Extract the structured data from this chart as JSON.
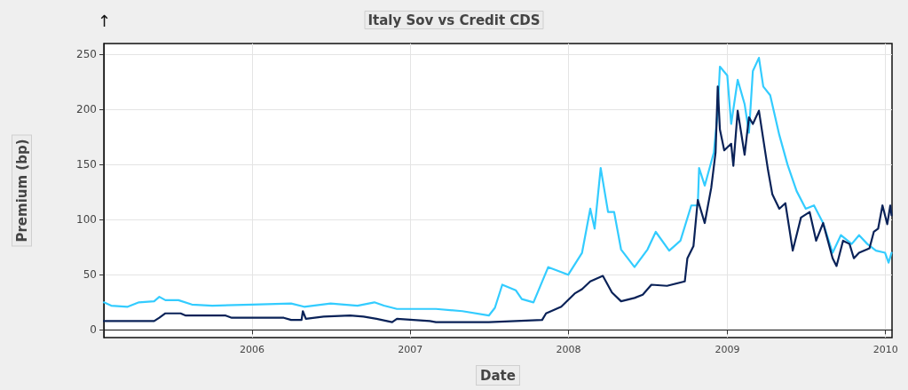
{
  "chart_data": {
    "type": "line",
    "title": "Italy Sov vs Credit CDS",
    "xlabel": "Date",
    "ylabel": "Premium (bp)",
    "annotations": [
      "↑"
    ],
    "xlim": [
      "2005-01-24",
      "2010-01-16"
    ],
    "xticks": [
      "2006",
      "2007",
      "2008",
      "2009",
      "2010"
    ],
    "ylim": [
      -7,
      260
    ],
    "yticks": [
      0,
      50,
      100,
      150,
      200,
      250
    ],
    "grid": true,
    "marker": "none",
    "line_style": "solid",
    "series": [
      {
        "color": "#33ccff",
        "x": [
          "2005-01-24",
          "2005-02-10",
          "2005-03-20",
          "2005-04-15",
          "2005-05-20",
          "2005-06-01",
          "2005-06-15",
          "2005-07-15",
          "2005-08-15",
          "2005-10-01",
          "2006-01-01",
          "2006-04-01",
          "2006-05-01",
          "2006-07-01",
          "2006-09-01",
          "2006-10-10",
          "2006-11-01",
          "2006-12-01",
          "2007-03-01",
          "2007-05-01",
          "2007-07-01",
          "2007-07-15",
          "2007-08-01",
          "2007-09-01",
          "2007-09-15",
          "2007-10-12",
          "2007-11-15",
          "2007-12-31",
          "2008-02-01",
          "2008-02-20",
          "2008-03-01",
          "2008-03-15",
          "2008-04-01",
          "2008-04-15",
          "2008-05-01",
          "2008-06-01",
          "2008-07-01",
          "2008-07-20",
          "2008-08-20",
          "2008-09-15",
          "2008-10-10",
          "2008-10-25",
          "2008-10-28",
          "2008-11-10",
          "2008-12-01",
          "2008-12-10",
          "2008-12-15",
          "2009-01-01",
          "2009-01-10",
          "2009-01-25",
          "2009-02-10",
          "2009-02-20",
          "2009-03-01",
          "2009-03-15",
          "2009-03-25",
          "2009-04-10",
          "2009-05-01",
          "2009-05-20",
          "2009-06-10",
          "2009-07-01",
          "2009-07-20",
          "2009-08-10",
          "2009-09-01",
          "2009-09-20",
          "2009-10-15",
          "2009-11-01",
          "2009-11-20",
          "2009-12-10",
          "2009-12-31",
          "2010-01-08",
          "2010-01-15"
        ],
        "values": [
          25,
          22,
          21,
          25,
          26,
          30,
          27,
          27,
          23,
          22,
          23,
          24,
          21,
          24,
          22,
          25,
          22,
          19,
          19,
          17,
          13,
          20,
          41,
          36,
          28,
          25,
          57,
          50,
          70,
          110,
          92,
          147,
          107,
          107,
          73,
          57,
          73,
          89,
          72,
          81,
          113,
          113,
          147,
          131,
          161,
          198,
          239,
          231,
          187,
          227,
          205,
          179,
          235,
          247,
          221,
          213,
          177,
          150,
          126,
          110,
          113,
          97,
          70,
          86,
          78,
          86,
          78,
          72,
          70,
          61,
          70
        ]
      },
      {
        "color": "#0a2258",
        "x": [
          "2005-01-24",
          "2005-05-20",
          "2005-06-01",
          "2005-06-15",
          "2005-07-20",
          "2005-08-01",
          "2005-11-01",
          "2005-11-15",
          "2006-03-15",
          "2006-04-01",
          "2006-04-25",
          "2006-04-28",
          "2006-05-05",
          "2006-06-15",
          "2006-08-15",
          "2006-09-15",
          "2006-10-15",
          "2006-11-20",
          "2006-12-01",
          "2007-02-15",
          "2007-03-01",
          "2007-07-01",
          "2007-09-01",
          "2007-11-01",
          "2007-11-10",
          "2007-12-15",
          "2008-01-15",
          "2008-02-01",
          "2008-02-20",
          "2008-03-20",
          "2008-04-10",
          "2008-05-01",
          "2008-06-01",
          "2008-06-20",
          "2008-07-10",
          "2008-08-15",
          "2008-09-25",
          "2008-10-01",
          "2008-10-15",
          "2008-10-25",
          "2008-11-10",
          "2008-11-25",
          "2008-12-05",
          "2008-12-10",
          "2008-12-15",
          "2008-12-25",
          "2009-01-10",
          "2009-01-15",
          "2009-01-25",
          "2009-02-10",
          "2009-02-20",
          "2009-03-01",
          "2009-03-15",
          "2009-04-05",
          "2009-04-15",
          "2009-05-01",
          "2009-05-15",
          "2009-06-01",
          "2009-06-20",
          "2009-07-10",
          "2009-07-25",
          "2009-08-10",
          "2009-09-01",
          "2009-09-10",
          "2009-09-25",
          "2009-10-10",
          "2009-10-20",
          "2009-11-01",
          "2009-11-25",
          "2009-12-05",
          "2009-12-15",
          "2009-12-25",
          "2010-01-05",
          "2010-01-12",
          "2010-01-15"
        ],
        "values": [
          8,
          8,
          11,
          15,
          15,
          13,
          13,
          11,
          11,
          9,
          9,
          17,
          10,
          12,
          13,
          12,
          10,
          7,
          10,
          8,
          7,
          7,
          8,
          9,
          15,
          21,
          33,
          37,
          44,
          49,
          34,
          26,
          29,
          32,
          41,
          40,
          44,
          65,
          76,
          118,
          97,
          129,
          161,
          221,
          182,
          163,
          169,
          149,
          199,
          159,
          193,
          187,
          199,
          145,
          123,
          110,
          115,
          72,
          102,
          107,
          81,
          97,
          65,
          58,
          81,
          78,
          65,
          70,
          74,
          89,
          92,
          113,
          96,
          113,
          104
        ]
      }
    ]
  }
}
